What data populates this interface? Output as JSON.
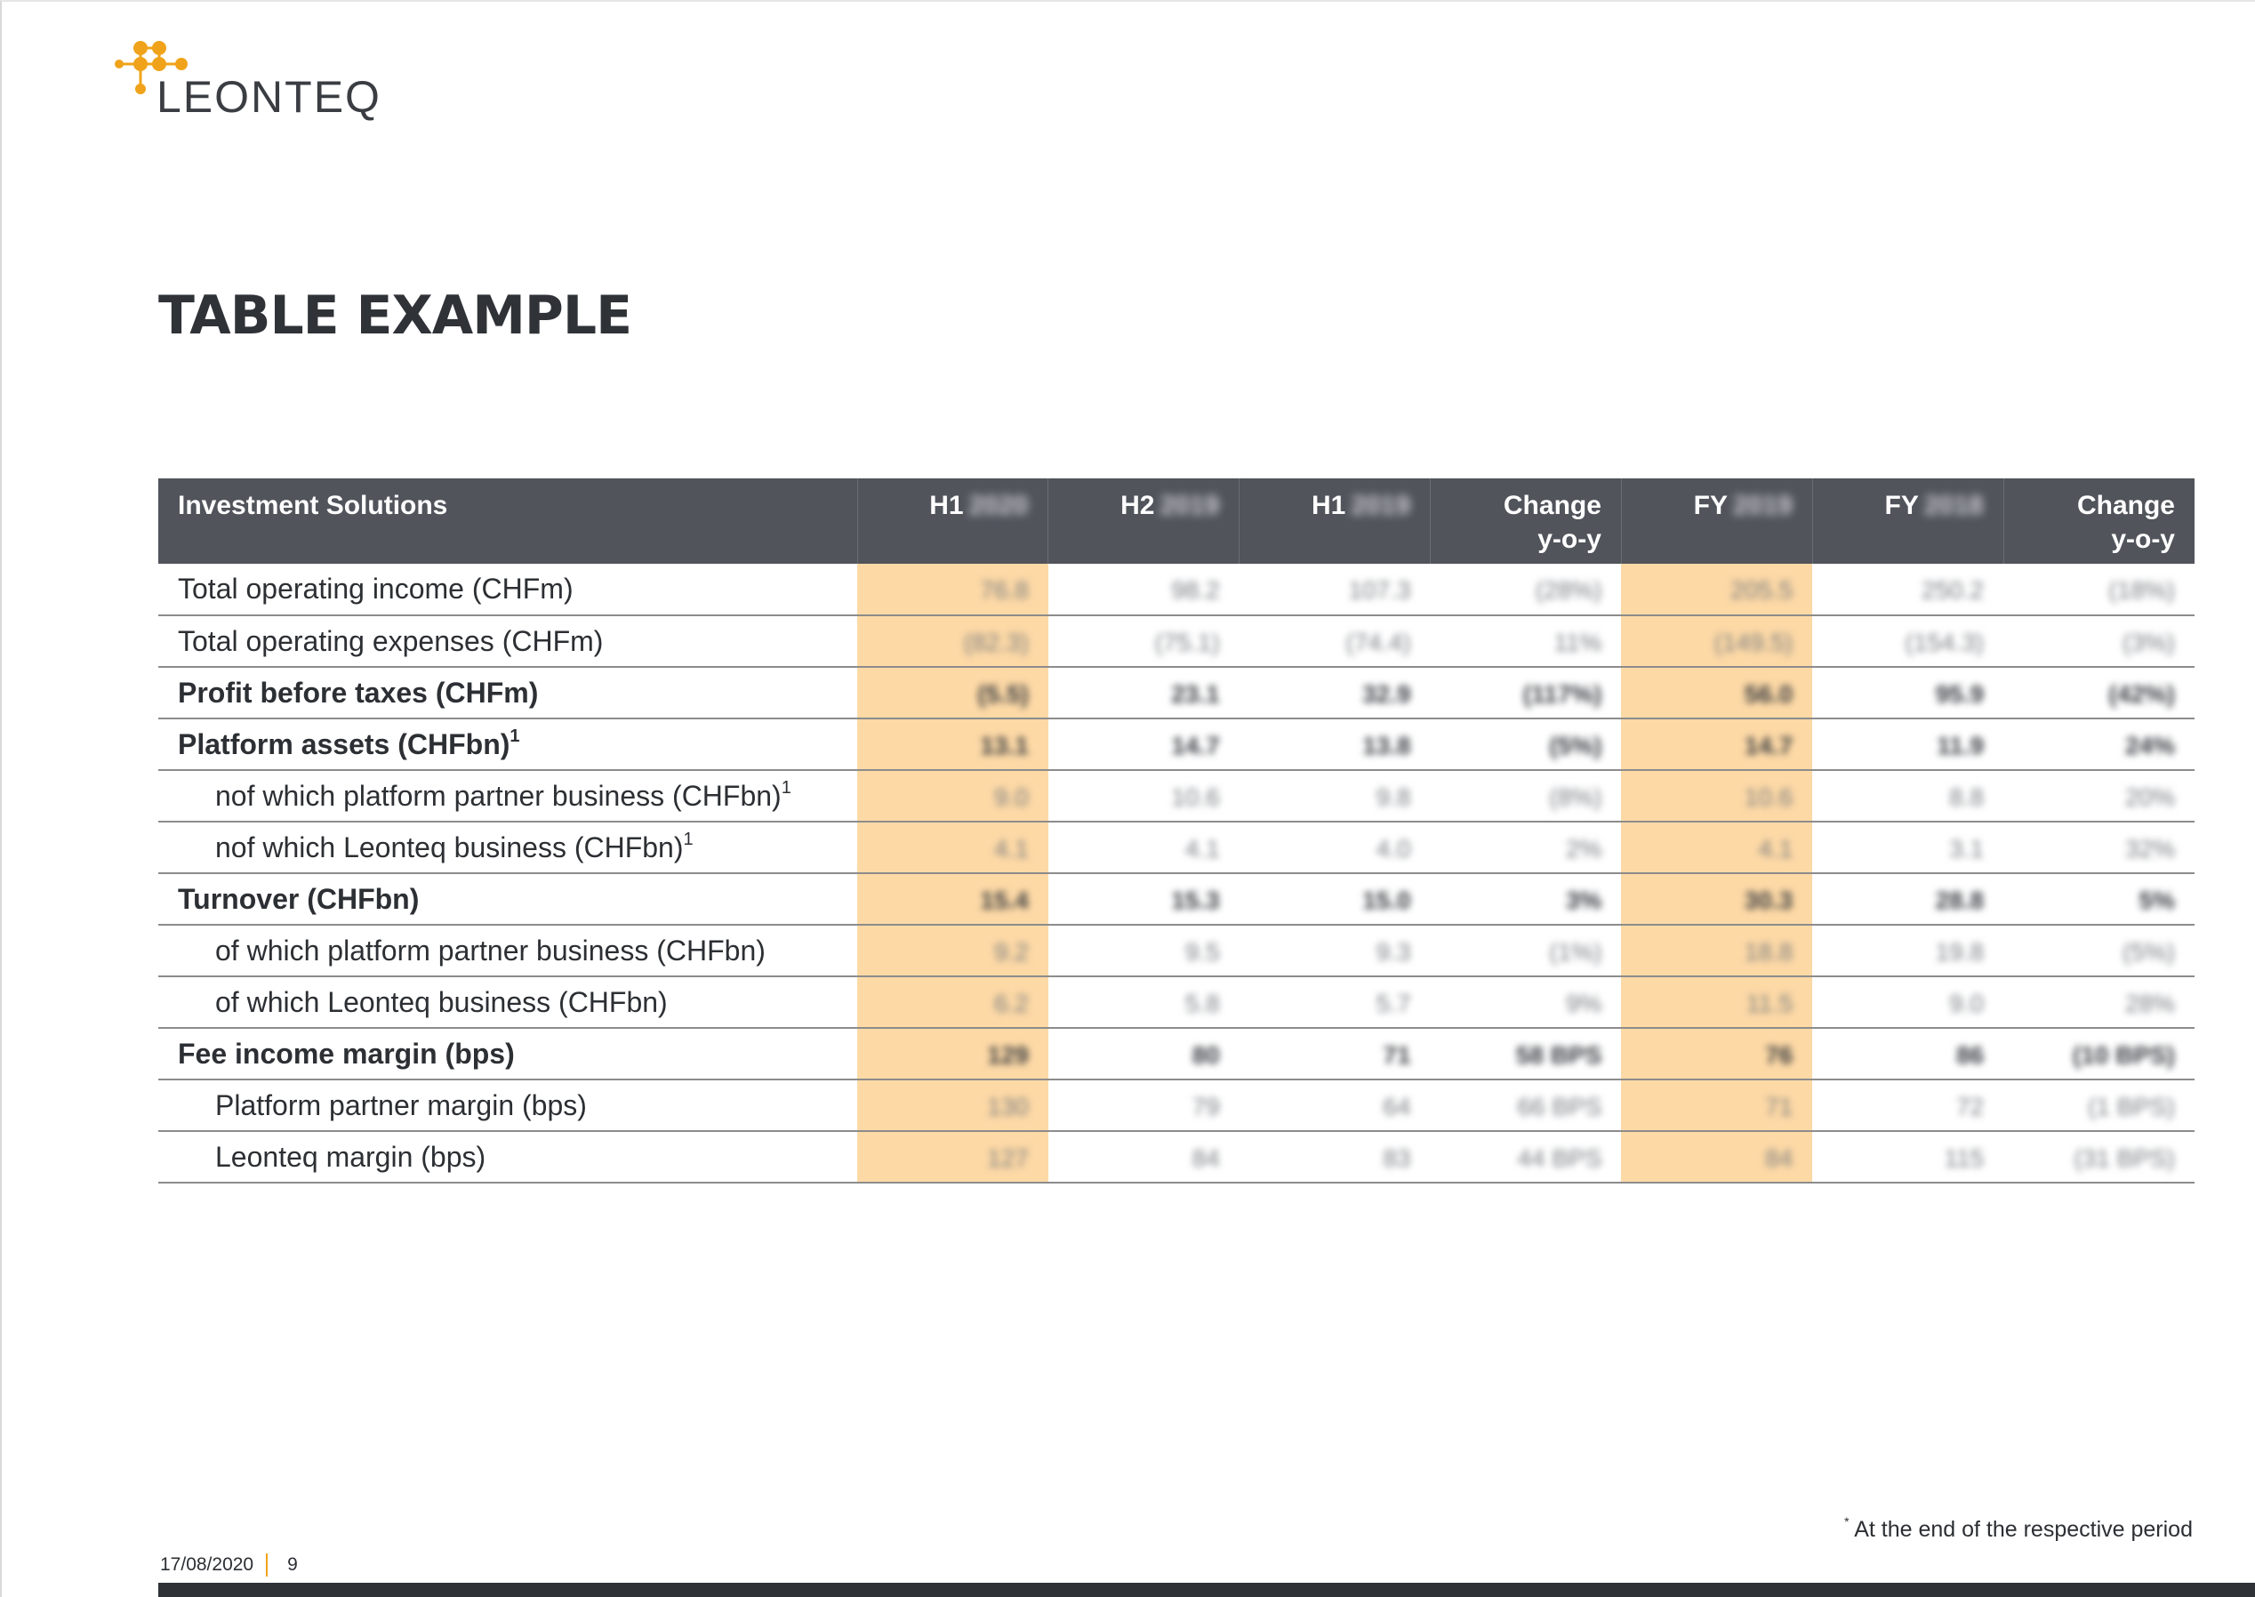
{
  "brand": {
    "logo_text": "LEONTEQ",
    "logo_color": "#f0a31a",
    "text_color": "#3a3d42"
  },
  "page_title": "TABLE EXAMPLE",
  "table": {
    "header_bg": "#51545b",
    "highlight_color": "#fdd9a6",
    "columns": [
      {
        "label": "Investment Solutions",
        "year": ""
      },
      {
        "label": "H1",
        "year": "2020"
      },
      {
        "label": "H2",
        "year": "2019"
      },
      {
        "label": "H1",
        "year": "2019"
      },
      {
        "label": "Change",
        "label2": "y-o-y",
        "year": ""
      },
      {
        "label": "FY",
        "year": "2019"
      },
      {
        "label": "FY",
        "year": "2018"
      },
      {
        "label": "Change",
        "label2": "y-o-y",
        "year": ""
      }
    ],
    "rows": [
      {
        "label": "Total operating income (CHFm)",
        "values": [
          "76.8",
          "98.2",
          "107.3",
          "(28%)",
          "205.5",
          "250.2",
          "(18%)"
        ]
      },
      {
        "label": "Total operating expenses (CHFm)",
        "values": [
          "(82.3)",
          "(75.1)",
          "(74.4)",
          "11%",
          "(149.5)",
          "(154.3)",
          "(3%)"
        ]
      },
      {
        "label": "Profit before taxes (CHFm)",
        "values": [
          "(5.5)",
          "23.1",
          "32.9",
          "(117%)",
          "56.0",
          "95.9",
          "(42%)"
        ]
      },
      {
        "label": "Platform assets (CHFbn)",
        "sup": "1",
        "values": [
          "13.1",
          "14.7",
          "13.8",
          "(5%)",
          "14.7",
          "11.9",
          "24%"
        ]
      },
      {
        "label": "nof which platform partner business (CHFbn)",
        "sup": "1",
        "values": [
          "9.0",
          "10.6",
          "9.8",
          "(8%)",
          "10.6",
          "8.8",
          "20%"
        ]
      },
      {
        "label": "nof which Leonteq business (CHFbn)",
        "sup": "1",
        "values": [
          "4.1",
          "4.1",
          "4.0",
          "2%",
          "4.1",
          "3.1",
          "32%"
        ]
      },
      {
        "label": "Turnover (CHFbn)",
        "values": [
          "15.4",
          "15.3",
          "15.0",
          "3%",
          "30.3",
          "28.8",
          "5%"
        ]
      },
      {
        "label": "of which platform partner business (CHFbn)",
        "values": [
          "9.2",
          "9.5",
          "9.3",
          "(1%)",
          "18.8",
          "19.8",
          "(5%)"
        ]
      },
      {
        "label": "of which Leonteq business (CHFbn)",
        "values": [
          "6.2",
          "5.8",
          "5.7",
          "9%",
          "11.5",
          "9.0",
          "28%"
        ]
      },
      {
        "label": "Fee income margin (bps)",
        "values": [
          "129",
          "80",
          "71",
          "58 BPS",
          "76",
          "86",
          "(10 BPS)"
        ]
      },
      {
        "label": "Platform partner margin (bps)",
        "values": [
          "130",
          "79",
          "64",
          "66 BPS",
          "71",
          "72",
          "(1 BPS)"
        ]
      },
      {
        "label": "Leonteq margin (bps)",
        "values": [
          "127",
          "84",
          "83",
          "44 BPS",
          "84",
          "115",
          "(31 BPS)"
        ]
      }
    ]
  },
  "footnote": {
    "marker": "*",
    "text": "At the end of the respective period"
  },
  "footer": {
    "date": "17/08/2020",
    "page_number": "9"
  }
}
